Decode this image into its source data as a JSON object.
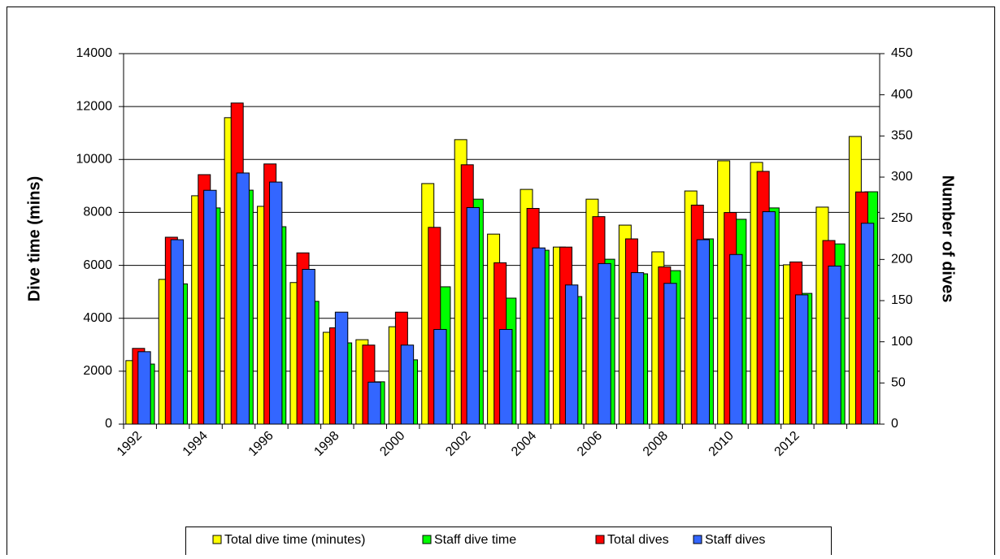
{
  "chart_data": {
    "type": "bar",
    "y_label": "Dive time (mins)",
    "y2_label": "Number of dives",
    "categories": [
      "1992",
      null,
      "1994",
      null,
      "1996",
      null,
      "1998",
      null,
      "2000",
      null,
      "2002",
      null,
      "2004",
      null,
      "2006",
      null,
      "2008",
      null,
      "2010",
      null,
      "2012",
      null,
      null
    ],
    "series": [
      {
        "name": "Total dive time (minutes)",
        "color": "#ffff00",
        "values": [
          2400,
          5470,
          8630,
          11580,
          8230,
          5350,
          3470,
          3190,
          3680,
          9090,
          10750,
          7180,
          8870,
          6690,
          8500,
          7520,
          6510,
          8810,
          9950,
          9890,
          6020,
          8200,
          10870
        ]
      },
      {
        "name": "Staff dive time",
        "color": "#00ff00",
        "values": [
          2270,
          5300,
          8170,
          8840,
          7460,
          4640,
          3070,
          1600,
          2430,
          5190,
          8500,
          4760,
          6570,
          4820,
          6230,
          5680,
          5800,
          7000,
          7740,
          8170,
          4940,
          6810,
          8780
        ]
      },
      {
        "name": "Total dives",
        "color": "#ff0000",
        "axis": "y2",
        "values": [
          92,
          227,
          303,
          390,
          316,
          208,
          117,
          96,
          136,
          239,
          315,
          196,
          262,
          215,
          252,
          225,
          191,
          266,
          257,
          307,
          197,
          223,
          282
        ]
      },
      {
        "name": "Staff dives",
        "color": "#3366ff",
        "axis": "y2",
        "values": [
          88,
          224,
          284,
          305,
          294,
          188,
          136,
          51,
          96,
          115,
          263,
          115,
          214,
          169,
          195,
          184,
          171,
          224,
          206,
          258,
          157,
          192,
          244
        ]
      }
    ],
    "ylim": [
      0,
      14000
    ],
    "yticks": [
      0,
      2000,
      4000,
      6000,
      8000,
      10000,
      12000,
      14000
    ],
    "y2lim": [
      0,
      450
    ],
    "y2ticks": [
      0,
      50,
      100,
      150,
      200,
      250,
      300,
      350,
      400,
      450
    ],
    "grid": true,
    "legend": "bottom"
  }
}
